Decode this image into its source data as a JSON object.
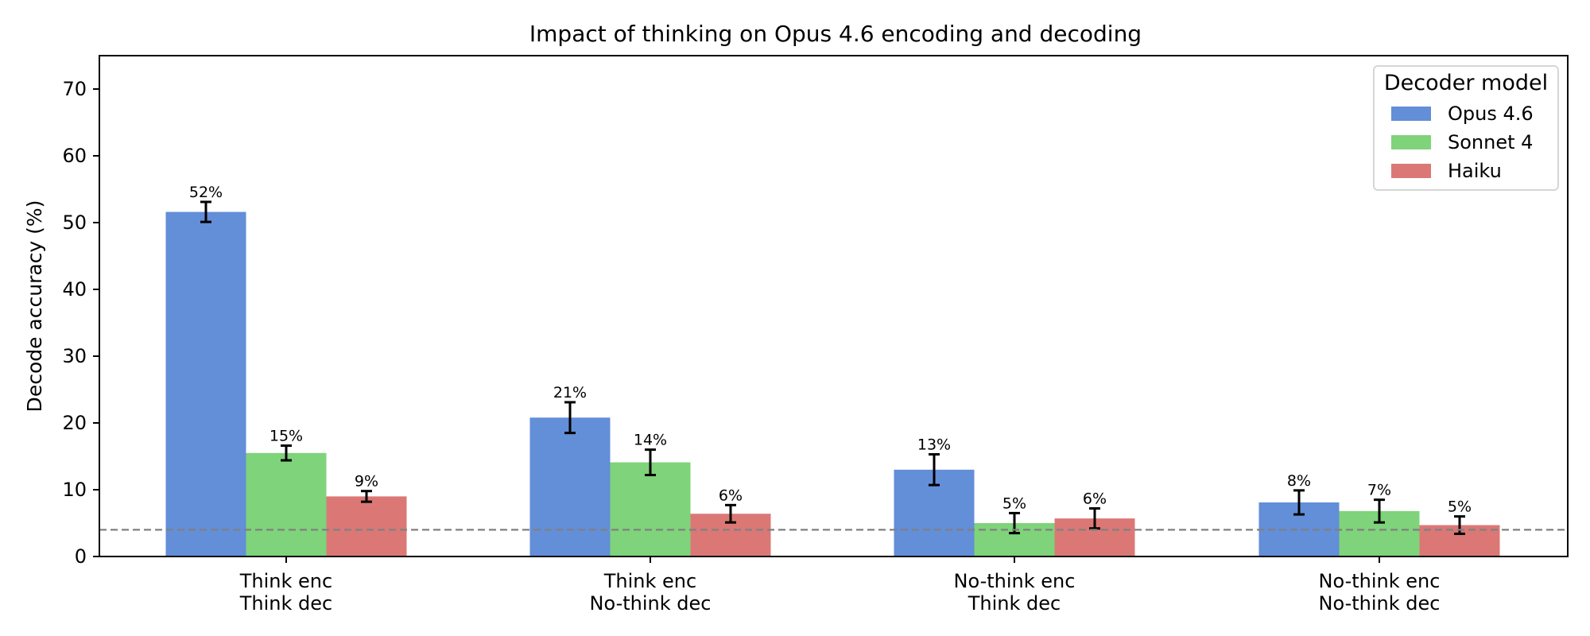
{
  "chart_data": {
    "type": "bar",
    "title": "Impact of thinking on Opus 4.6 encoding and decoding",
    "xlabel": "",
    "ylabel": "Decode accuracy (%)",
    "ylim": [
      0,
      75
    ],
    "yticks": [
      0,
      10,
      20,
      30,
      40,
      50,
      60,
      70
    ],
    "ytick_labels": [
      "0",
      "10",
      "20",
      "30",
      "40",
      "50",
      "60",
      "70"
    ],
    "grid": false,
    "categories": [
      [
        "Think enc",
        "Think dec"
      ],
      [
        "Think enc",
        "No-think dec"
      ],
      [
        "No-think enc",
        "Think dec"
      ],
      [
        "No-think enc",
        "No-think dec"
      ]
    ],
    "legend": {
      "title": "Decoder model",
      "position": "top-right"
    },
    "reference_line": {
      "value": 4,
      "style": "dashed",
      "color": "#808080"
    },
    "series": [
      {
        "name": "Opus 4.6",
        "color": "#638ed8",
        "values": [
          51.6,
          20.8,
          13.0,
          8.1
        ],
        "errors": [
          1.5,
          2.3,
          2.3,
          1.8
        ],
        "labels": [
          "52%",
          "21%",
          "13%",
          "8%"
        ]
      },
      {
        "name": "Sonnet 4",
        "color": "#7fd37a",
        "values": [
          15.5,
          14.1,
          5.0,
          6.8
        ],
        "errors": [
          1.1,
          1.9,
          1.5,
          1.7
        ],
        "labels": [
          "15%",
          "14%",
          "5%",
          "7%"
        ]
      },
      {
        "name": "Haiku",
        "color": "#db7876",
        "values": [
          9.0,
          6.4,
          5.7,
          4.7
        ],
        "errors": [
          0.8,
          1.3,
          1.5,
          1.3
        ],
        "labels": [
          "9%",
          "6%",
          "6%",
          "5%"
        ]
      }
    ]
  }
}
